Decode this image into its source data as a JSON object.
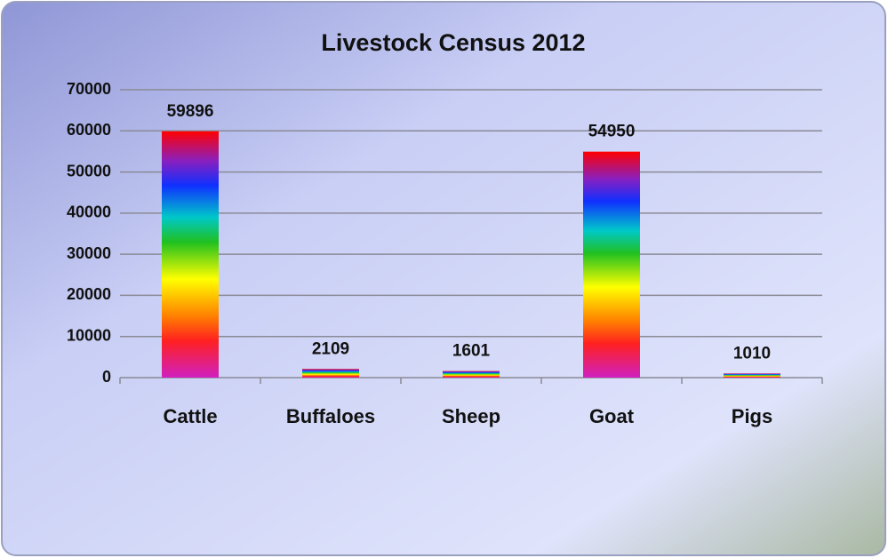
{
  "chart_data": {
    "type": "bar",
    "title": "Livestock Census 2012",
    "categories": [
      "Cattle",
      "Buffaloes",
      "Sheep",
      "Goat",
      "Pigs"
    ],
    "values": [
      59896,
      2109,
      1601,
      54950,
      1010
    ],
    "ylim": [
      0,
      70000
    ],
    "yticks": [
      0,
      10000,
      20000,
      30000,
      40000,
      50000,
      60000,
      70000
    ],
    "grid": true
  }
}
